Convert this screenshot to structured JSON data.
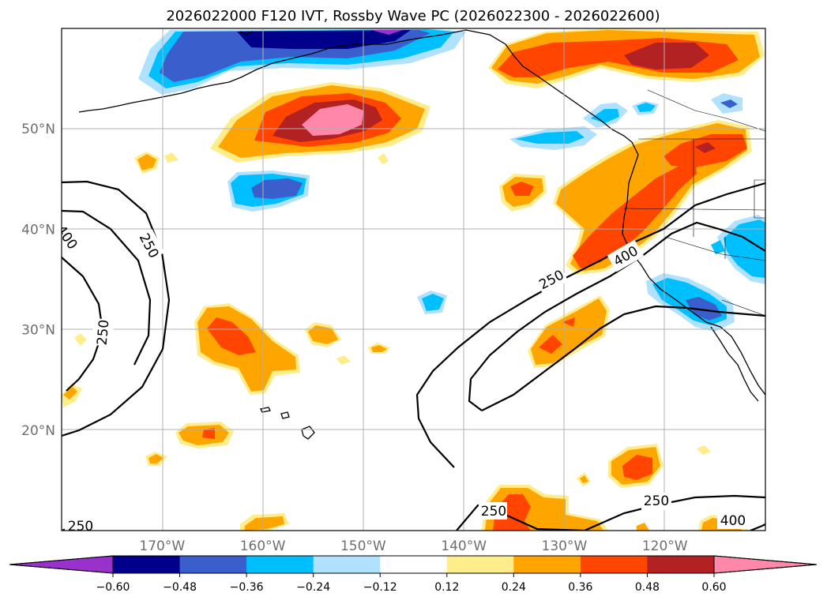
{
  "chart_data": {
    "type": "map-contourf",
    "title": "2026022000 F120 IVT, Rossby Wave PC (2026022300 - 2026022600)",
    "lon_ticks": [
      "170°W",
      "160°W",
      "150°W",
      "140°W",
      "130°W",
      "120°W"
    ],
    "lat_ticks": [
      "50°N",
      "40°N",
      "30°N",
      "20°N"
    ],
    "lon_range": [
      -180,
      -110
    ],
    "lat_range": [
      10,
      60
    ],
    "grid": true,
    "colorbar": {
      "orientation": "horizontal",
      "extend": "both",
      "levels": [
        -0.72,
        -0.6,
        -0.48,
        -0.36,
        -0.24,
        -0.12,
        0.12,
        0.24,
        0.36,
        0.48,
        0.6,
        0.72
      ],
      "tick_values": [
        -0.6,
        -0.48,
        -0.36,
        -0.24,
        -0.12,
        0.12,
        0.24,
        0.36,
        0.48,
        0.6
      ],
      "tick_labels": [
        "−0.60",
        "−0.48",
        "−0.36",
        "−0.24",
        "−0.12",
        "0.12",
        "0.24",
        "0.36",
        "0.48",
        "0.60"
      ],
      "colors": [
        "#9932cc",
        "#00008b",
        "#3a5fcd",
        "#00bfff",
        "#b0e2ff",
        "#ffffff",
        "#ffec8b",
        "#ffa500",
        "#ff4500",
        "#b22222",
        "#ff88aa"
      ]
    },
    "ivt_contours": [
      {
        "level": 250,
        "labels": [
          "250",
          "250",
          "250",
          "250",
          "250",
          "250"
        ]
      },
      {
        "level": 400,
        "labels": [
          "400",
          "400",
          "400"
        ]
      }
    ]
  }
}
